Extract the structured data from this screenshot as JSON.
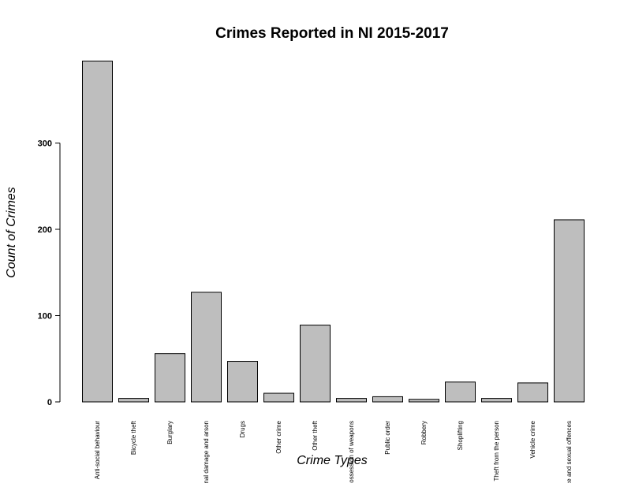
{
  "chart_data": {
    "type": "bar",
    "title": "Crimes Reported in NI 2015-2017",
    "xlabel": "Crime Types",
    "ylabel": "Count of Crimes",
    "ylim": [
      0,
      400
    ],
    "yticks": [
      0,
      100,
      200,
      300
    ],
    "grid": false,
    "categories": [
      "Anti-social behaviour",
      "Bicycle theft",
      "Burglary",
      "Criminal damage and arson",
      "Drugs",
      "Other crime",
      "Other theft",
      "Possession of weapons",
      "Public order",
      "Robbery",
      "Shoplifting",
      "Theft from the person",
      "Vehicle crime",
      "Violence and sexual offences"
    ],
    "values": [
      395,
      4,
      56,
      127,
      47,
      10,
      89,
      4,
      6,
      3,
      23,
      4,
      22,
      211
    ]
  }
}
